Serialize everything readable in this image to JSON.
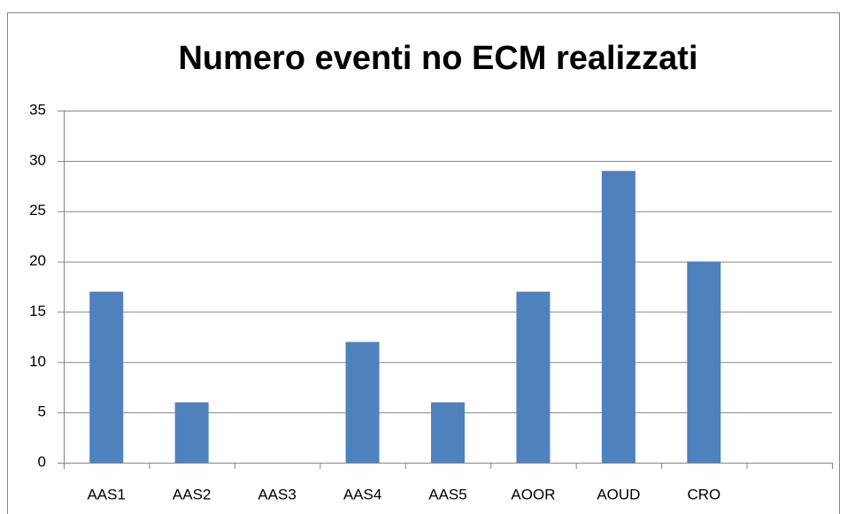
{
  "chart_data": {
    "type": "bar",
    "title": "Numero eventi no ECM realizzati",
    "categories": [
      "AAS1",
      "AAS2",
      "AAS3",
      "AAS4",
      "AAS5",
      "AOOR",
      "AOUD",
      "CRO",
      null
    ],
    "values": [
      17,
      6,
      0,
      12,
      6,
      17,
      29,
      20,
      null
    ],
    "color": "#4f81bd",
    "ylim": [
      0,
      35
    ],
    "yticks": [
      0,
      5,
      10,
      15,
      20,
      25,
      30,
      35
    ],
    "grid": true
  }
}
